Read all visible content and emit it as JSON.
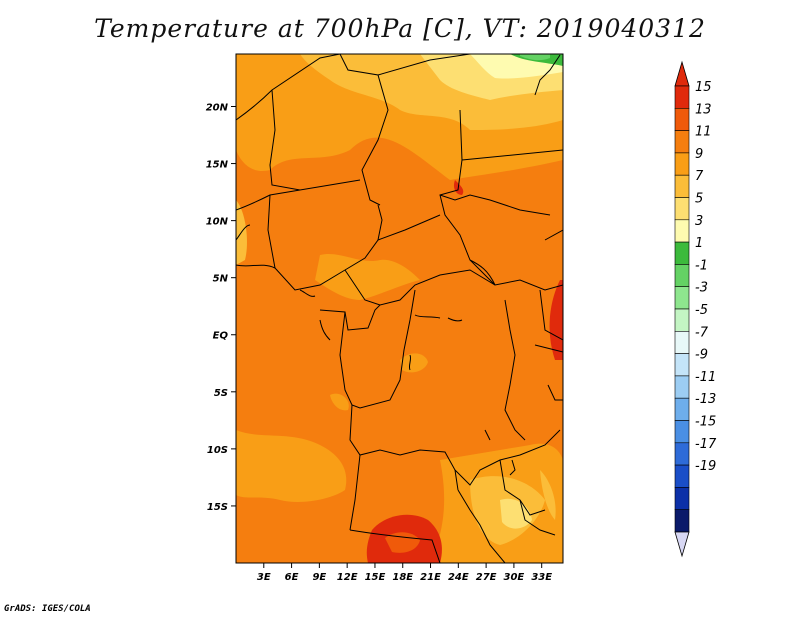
{
  "title": "Temperature at 700hPa [C], VT: 2019040312",
  "credit": "GrADS: IGES/COLA",
  "map": {
    "lon_range": [
      0,
      35.3
    ],
    "lat_range": [
      -20,
      24.6
    ],
    "lon_ticks": [
      "3E",
      "6E",
      "9E",
      "12E",
      "15E",
      "18E",
      "21E",
      "24E",
      "27E",
      "30E",
      "33E"
    ],
    "lat_ticks": [
      "20N",
      "15N",
      "10N",
      "5N",
      "EQ",
      "5S",
      "10S",
      "15S"
    ]
  },
  "colorbar": {
    "labels": [
      "15",
      "13",
      "11",
      "9",
      "7",
      "5",
      "3",
      "1",
      "-1",
      "-3",
      "-5",
      "-7",
      "-9",
      "-11",
      "-13",
      "-15",
      "-17",
      "-19"
    ],
    "colors": [
      "#e02a0c",
      "#f05a0a",
      "#f57e0f",
      "#f99e16",
      "#fbbd39",
      "#fddf72",
      "#fefbb0",
      "#3cba3c",
      "#64d264",
      "#8ee68e",
      "#c4f5c4",
      "#e8f8f8",
      "#c4e4f8",
      "#9ccdf3",
      "#6eaeec",
      "#4a8fe4",
      "#2e6bd8",
      "#1a4ec8",
      "#0c30a8",
      "#0a1a6a"
    ],
    "top_color": "#e02a0c",
    "bottom_color": "#d8d8f4"
  }
}
